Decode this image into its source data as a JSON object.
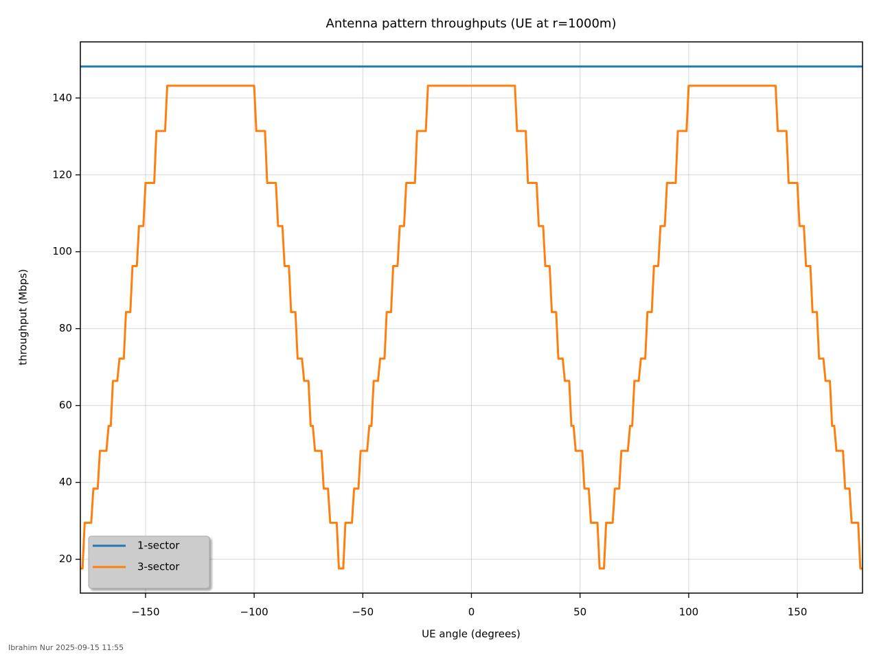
{
  "chart_data": {
    "type": "line",
    "title": "Antenna pattern throughputs (UE at r=1000m)",
    "xlabel": "UE angle (degrees)",
    "ylabel": "throughput (Mbps)",
    "footer": "Ibrahim Nur 2025-09-15 11:55",
    "xlim": [
      -180,
      180
    ],
    "ylim": [
      11.2,
      154.6
    ],
    "xticks": [
      {
        "value": -150,
        "label": "−150"
      },
      {
        "value": -100,
        "label": "−100"
      },
      {
        "value": -50,
        "label": "−50"
      },
      0,
      50,
      100,
      150
    ],
    "yticks": [
      20,
      40,
      60,
      80,
      100,
      120,
      140
    ],
    "grid": true,
    "legend": "lower left",
    "x": [
      -180,
      -179,
      -178,
      -177,
      -176,
      -175,
      -174,
      -173,
      -172,
      -171,
      -170,
      -169,
      -168,
      -167,
      -166,
      -165,
      -164,
      -163,
      -162,
      -161,
      -160,
      -159,
      -158,
      -157,
      -156,
      -155,
      -154,
      -153,
      -152,
      -151,
      -150,
      -149,
      -148,
      -147,
      -146,
      -145,
      -144,
      -143,
      -142,
      -141,
      -140,
      -139,
      -138,
      -137,
      -136,
      -135,
      -134,
      -133,
      -132,
      -131,
      -130,
      -129,
      -128,
      -127,
      -126,
      -125,
      -124,
      -123,
      -122,
      -121,
      -120,
      -119,
      -118,
      -117,
      -116,
      -115,
      -114,
      -113,
      -112,
      -111,
      -110,
      -109,
      -108,
      -107,
      -106,
      -105,
      -104,
      -103,
      -102,
      -101,
      -100,
      -99,
      -98,
      -97,
      -96,
      -95,
      -94,
      -93,
      -92,
      -91,
      -90,
      -89,
      -88,
      -87,
      -86,
      -85,
      -84,
      -83,
      -82,
      -81,
      -80,
      -79,
      -78,
      -77,
      -76,
      -75,
      -74,
      -73,
      -72,
      -71,
      -70,
      -69,
      -68,
      -67,
      -66,
      -65,
      -64,
      -63,
      -62,
      -61,
      -60,
      -59,
      -58,
      -57,
      -56,
      -55,
      -54,
      -53,
      -52,
      -51,
      -50,
      -49,
      -48,
      -47,
      -46,
      -45,
      -44,
      -43,
      -42,
      -41,
      -40,
      -39,
      -38,
      -37,
      -36,
      -35,
      -34,
      -33,
      -32,
      -31,
      -30,
      -29,
      -28,
      -27,
      -26,
      -25,
      -24,
      -23,
      -22,
      -21,
      -20,
      -19,
      -18,
      -17,
      -16,
      -15,
      -14,
      -13,
      -12,
      -11,
      -10,
      -9,
      -8,
      -7,
      -6,
      -5,
      -4,
      -3,
      -2,
      -1,
      0,
      1,
      2,
      3,
      4,
      5,
      6,
      7,
      8,
      9,
      10,
      11,
      12,
      13,
      14,
      15,
      16,
      17,
      18,
      19,
      20,
      21,
      22,
      23,
      24,
      25,
      26,
      27,
      28,
      29,
      30,
      31,
      32,
      33,
      34,
      35,
      36,
      37,
      38,
      39,
      40,
      41,
      42,
      43,
      44,
      45,
      46,
      47,
      48,
      49,
      50,
      51,
      52,
      53,
      54,
      55,
      56,
      57,
      58,
      59,
      60,
      61,
      62,
      63,
      64,
      65,
      66,
      67,
      68,
      69,
      70,
      71,
      72,
      73,
      74,
      75,
      76,
      77,
      78,
      79,
      80,
      81,
      82,
      83,
      84,
      85,
      86,
      87,
      88,
      89,
      90,
      91,
      92,
      93,
      94,
      95,
      96,
      97,
      98,
      99,
      100,
      101,
      102,
      103,
      104,
      105,
      106,
      107,
      108,
      109,
      110,
      111,
      112,
      113,
      114,
      115,
      116,
      117,
      118,
      119,
      120,
      121,
      122,
      123,
      124,
      125,
      126,
      127,
      128,
      129,
      130,
      131,
      132,
      133,
      134,
      135,
      136,
      137,
      138,
      139,
      140,
      141,
      142,
      143,
      144,
      145,
      146,
      147,
      148,
      149,
      150,
      151,
      152,
      153,
      154,
      155,
      156,
      157,
      158,
      159,
      160,
      161,
      162,
      163,
      164,
      165,
      166,
      167,
      168,
      169,
      170,
      171,
      172,
      173,
      174,
      175,
      176,
      177,
      178,
      179,
      180
    ],
    "series": [
      {
        "name": "1-sector",
        "color": "#1f77b4",
        "values": [
          148.2,
          148.2,
          148.2,
          148.2,
          148.2,
          148.2,
          148.2,
          148.2,
          148.2,
          148.2,
          148.2,
          148.2,
          148.2,
          148.2,
          148.2,
          148.2,
          148.2,
          148.2,
          148.2,
          148.2,
          148.2,
          148.2,
          148.2,
          148.2,
          148.2,
          148.2,
          148.2,
          148.2,
          148.2,
          148.2,
          148.2,
          148.2,
          148.2,
          148.2,
          148.2,
          148.2,
          148.2,
          148.2,
          148.2,
          148.2,
          148.2,
          148.2,
          148.2,
          148.2,
          148.2,
          148.2,
          148.2,
          148.2,
          148.2,
          148.2,
          148.2,
          148.2,
          148.2,
          148.2,
          148.2,
          148.2,
          148.2,
          148.2,
          148.2,
          148.2,
          148.2,
          148.2,
          148.2,
          148.2,
          148.2,
          148.2,
          148.2,
          148.2,
          148.2,
          148.2,
          148.2,
          148.2,
          148.2,
          148.2,
          148.2,
          148.2,
          148.2,
          148.2,
          148.2,
          148.2,
          148.2,
          148.2,
          148.2,
          148.2,
          148.2,
          148.2,
          148.2,
          148.2,
          148.2,
          148.2,
          148.2,
          148.2,
          148.2,
          148.2,
          148.2,
          148.2,
          148.2,
          148.2,
          148.2,
          148.2,
          148.2,
          148.2,
          148.2,
          148.2,
          148.2,
          148.2,
          148.2,
          148.2,
          148.2,
          148.2,
          148.2,
          148.2,
          148.2,
          148.2,
          148.2,
          148.2,
          148.2,
          148.2,
          148.2,
          148.2,
          148.2,
          148.2,
          148.2,
          148.2,
          148.2,
          148.2,
          148.2,
          148.2,
          148.2,
          148.2,
          148.2,
          148.2,
          148.2,
          148.2,
          148.2,
          148.2,
          148.2,
          148.2,
          148.2,
          148.2,
          148.2,
          148.2,
          148.2,
          148.2,
          148.2,
          148.2,
          148.2,
          148.2,
          148.2,
          148.2,
          148.2,
          148.2,
          148.2,
          148.2,
          148.2,
          148.2,
          148.2,
          148.2,
          148.2,
          148.2,
          148.2,
          148.2,
          148.2,
          148.2,
          148.2,
          148.2,
          148.2,
          148.2,
          148.2,
          148.2,
          148.2,
          148.2,
          148.2,
          148.2,
          148.2,
          148.2,
          148.2,
          148.2,
          148.2,
          148.2,
          148.2,
          148.2,
          148.2,
          148.2,
          148.2,
          148.2,
          148.2,
          148.2,
          148.2,
          148.2,
          148.2,
          148.2,
          148.2,
          148.2,
          148.2,
          148.2,
          148.2,
          148.2,
          148.2,
          148.2,
          148.2,
          148.2,
          148.2,
          148.2,
          148.2,
          148.2,
          148.2,
          148.2,
          148.2,
          148.2,
          148.2,
          148.2,
          148.2,
          148.2,
          148.2,
          148.2,
          148.2,
          148.2,
          148.2,
          148.2,
          148.2,
          148.2,
          148.2,
          148.2,
          148.2,
          148.2,
          148.2,
          148.2,
          148.2,
          148.2,
          148.2,
          148.2,
          148.2,
          148.2,
          148.2,
          148.2,
          148.2,
          148.2,
          148.2,
          148.2,
          148.2,
          148.2,
          148.2,
          148.2,
          148.2,
          148.2,
          148.2,
          148.2,
          148.2,
          148.2,
          148.2,
          148.2,
          148.2,
          148.2,
          148.2,
          148.2,
          148.2,
          148.2,
          148.2,
          148.2,
          148.2,
          148.2,
          148.2,
          148.2,
          148.2,
          148.2,
          148.2,
          148.2,
          148.2,
          148.2,
          148.2,
          148.2,
          148.2,
          148.2,
          148.2,
          148.2,
          148.2,
          148.2,
          148.2,
          148.2,
          148.2,
          148.2,
          148.2,
          148.2,
          148.2,
          148.2,
          148.2,
          148.2,
          148.2,
          148.2,
          148.2,
          148.2,
          148.2,
          148.2,
          148.2,
          148.2,
          148.2,
          148.2,
          148.2,
          148.2,
          148.2,
          148.2,
          148.2,
          148.2,
          148.2,
          148.2,
          148.2,
          148.2,
          148.2,
          148.2,
          148.2,
          148.2,
          148.2,
          148.2,
          148.2,
          148.2,
          148.2,
          148.2,
          148.2,
          148.2,
          148.2,
          148.2,
          148.2,
          148.2,
          148.2,
          148.2,
          148.2,
          148.2,
          148.2,
          148.2,
          148.2,
          148.2,
          148.2,
          148.2,
          148.2,
          148.2,
          148.2,
          148.2,
          148.2,
          148.2,
          148.2,
          148.2,
          148.2,
          148.2,
          148.2,
          148.2,
          148.2,
          148.2,
          148.2,
          148.2,
          148.2,
          148.2,
          148.2,
          148.2,
          148.2,
          148.2,
          148.2,
          148.2,
          148.2,
          148.2,
          148.2
        ]
      },
      {
        "name": "3-sector",
        "color": "#ff7f0e",
        "values": [
          17.6,
          17.6,
          29.5,
          29.5,
          29.5,
          29.5,
          38.4,
          38.4,
          38.4,
          48.2,
          48.2,
          48.2,
          48.2,
          54.7,
          54.7,
          66.4,
          66.4,
          66.4,
          72.2,
          72.2,
          72.2,
          84.3,
          84.3,
          84.3,
          96.3,
          96.3,
          96.3,
          106.7,
          106.7,
          106.7,
          117.9,
          117.9,
          117.9,
          117.9,
          117.9,
          131.4,
          131.4,
          131.4,
          131.4,
          131.4,
          143.2,
          143.2,
          143.2,
          143.2,
          143.2,
          143.2,
          143.2,
          143.2,
          143.2,
          143.2,
          143.2,
          143.2,
          143.2,
          143.2,
          143.2,
          143.2,
          143.2,
          143.2,
          143.2,
          143.2,
          143.2,
          143.2,
          143.2,
          143.2,
          143.2,
          143.2,
          143.2,
          143.2,
          143.2,
          143.2,
          143.2,
          143.2,
          143.2,
          143.2,
          143.2,
          143.2,
          143.2,
          143.2,
          143.2,
          143.2,
          143.2,
          131.4,
          131.4,
          131.4,
          131.4,
          131.4,
          117.9,
          117.9,
          117.9,
          117.9,
          117.9,
          106.7,
          106.7,
          106.7,
          96.3,
          96.3,
          96.3,
          84.3,
          84.3,
          84.3,
          72.2,
          72.2,
          72.2,
          66.4,
          66.4,
          66.4,
          54.7,
          54.7,
          48.2,
          48.2,
          48.2,
          48.2,
          38.4,
          38.4,
          38.4,
          29.5,
          29.5,
          29.5,
          29.5,
          17.6,
          17.6,
          17.6,
          29.5,
          29.5,
          29.5,
          29.5,
          38.4,
          38.4,
          38.4,
          48.2,
          48.2,
          48.2,
          48.2,
          54.7,
          54.7,
          66.4,
          66.4,
          66.4,
          72.2,
          72.2,
          72.2,
          84.3,
          84.3,
          84.3,
          96.3,
          96.3,
          96.3,
          106.7,
          106.7,
          106.7,
          117.9,
          117.9,
          117.9,
          117.9,
          117.9,
          131.4,
          131.4,
          131.4,
          131.4,
          131.4,
          143.2,
          143.2,
          143.2,
          143.2,
          143.2,
          143.2,
          143.2,
          143.2,
          143.2,
          143.2,
          143.2,
          143.2,
          143.2,
          143.2,
          143.2,
          143.2,
          143.2,
          143.2,
          143.2,
          143.2,
          143.2,
          143.2,
          143.2,
          143.2,
          143.2,
          143.2,
          143.2,
          143.2,
          143.2,
          143.2,
          143.2,
          143.2,
          143.2,
          143.2,
          143.2,
          143.2,
          143.2,
          143.2,
          143.2,
          143.2,
          143.2,
          131.4,
          131.4,
          131.4,
          131.4,
          131.4,
          117.9,
          117.9,
          117.9,
          117.9,
          117.9,
          106.7,
          106.7,
          106.7,
          96.3,
          96.3,
          96.3,
          84.3,
          84.3,
          84.3,
          72.2,
          72.2,
          72.2,
          66.4,
          66.4,
          66.4,
          54.7,
          54.7,
          48.2,
          48.2,
          48.2,
          48.2,
          38.4,
          38.4,
          38.4,
          29.5,
          29.5,
          29.5,
          29.5,
          17.6,
          17.6,
          17.6,
          29.5,
          29.5,
          29.5,
          29.5,
          38.4,
          38.4,
          38.4,
          48.2,
          48.2,
          48.2,
          48.2,
          54.7,
          54.7,
          66.4,
          66.4,
          66.4,
          72.2,
          72.2,
          72.2,
          84.3,
          84.3,
          84.3,
          96.3,
          96.3,
          96.3,
          106.7,
          106.7,
          106.7,
          117.9,
          117.9,
          117.9,
          117.9,
          117.9,
          131.4,
          131.4,
          131.4,
          131.4,
          131.4,
          143.2,
          143.2,
          143.2,
          143.2,
          143.2,
          143.2,
          143.2,
          143.2,
          143.2,
          143.2,
          143.2,
          143.2,
          143.2,
          143.2,
          143.2,
          143.2,
          143.2,
          143.2,
          143.2,
          143.2,
          143.2,
          143.2,
          143.2,
          143.2,
          143.2,
          143.2,
          143.2,
          143.2,
          143.2,
          143.2,
          143.2,
          143.2,
          143.2,
          143.2,
          143.2,
          143.2,
          143.2,
          143.2,
          143.2,
          143.2,
          143.2,
          131.4,
          131.4,
          131.4,
          131.4,
          131.4,
          117.9,
          117.9,
          117.9,
          117.9,
          117.9,
          106.7,
          106.7,
          106.7,
          96.3,
          96.3,
          96.3,
          84.3,
          84.3,
          84.3,
          72.2,
          72.2,
          72.2,
          66.4,
          66.4,
          66.4,
          54.7,
          54.7,
          48.2,
          48.2,
          48.2,
          48.2,
          38.4,
          38.4,
          38.4,
          29.5,
          29.5,
          29.5,
          29.5,
          17.6,
          17.6
        ]
      }
    ]
  }
}
